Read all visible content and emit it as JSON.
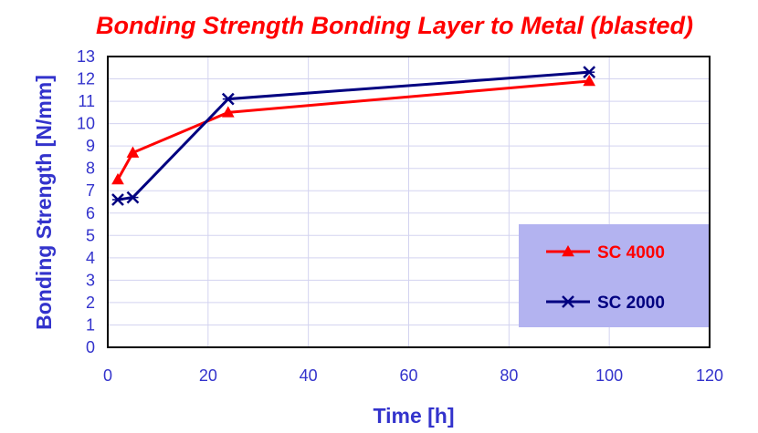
{
  "chart_data": {
    "type": "line",
    "title": "Bonding Strength Bonding Layer to Metal (blasted)",
    "xlabel": "Time [h]",
    "ylabel": "Bonding Strength [N/mm]",
    "xlim": [
      0,
      120
    ],
    "ylim": [
      0,
      13
    ],
    "x_ticks": [
      "0",
      "20",
      "40",
      "60",
      "80",
      "100",
      "120"
    ],
    "y_ticks": [
      "0",
      "1",
      "2",
      "3",
      "4",
      "5",
      "6",
      "7",
      "8",
      "9",
      "10",
      "11",
      "12",
      "13"
    ],
    "grid": true,
    "legend_position": "bottom-right",
    "series": [
      {
        "name": "SC 4000",
        "color": "#ff0000",
        "marker": "triangle",
        "x": [
          2,
          5,
          24,
          96
        ],
        "y": [
          7.5,
          8.7,
          10.5,
          11.9
        ]
      },
      {
        "name": "SC 2000",
        "color": "#000080",
        "marker": "x-cross",
        "x": [
          2,
          5,
          24,
          96
        ],
        "y": [
          6.6,
          6.7,
          11.1,
          12.3
        ]
      }
    ],
    "colors": {
      "title": "#ff0000",
      "axis_text": "#3333cc",
      "grid": "#d3d3f0",
      "legend_bg": "#b3b3f0"
    }
  }
}
